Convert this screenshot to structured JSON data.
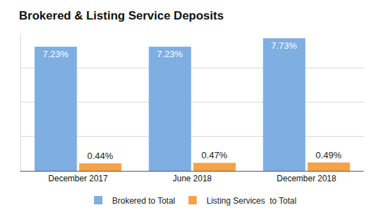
{
  "chart_data": {
    "type": "bar",
    "title": "Brokered & Listing Service Deposits",
    "categories": [
      "December 2017",
      "June 2018",
      "December 2018"
    ],
    "series": [
      {
        "name": "Brokered to Total",
        "color": "#7eaee2",
        "values": [
          7.23,
          7.23,
          7.73
        ],
        "value_labels": [
          "7.23%",
          "7.23%",
          "7.73%"
        ]
      },
      {
        "name": "Listing Services  to Total",
        "color": "#f5a24b",
        "values": [
          0.44,
          0.47,
          0.49
        ],
        "value_labels": [
          "0.44%",
          "0.47%",
          "0.49%"
        ]
      }
    ],
    "ylim": [
      0,
      8
    ],
    "yticks": [
      0,
      2,
      4,
      6,
      8
    ],
    "grid": true,
    "legend": "bottom",
    "data_labels": true,
    "tick_labels": "x"
  }
}
